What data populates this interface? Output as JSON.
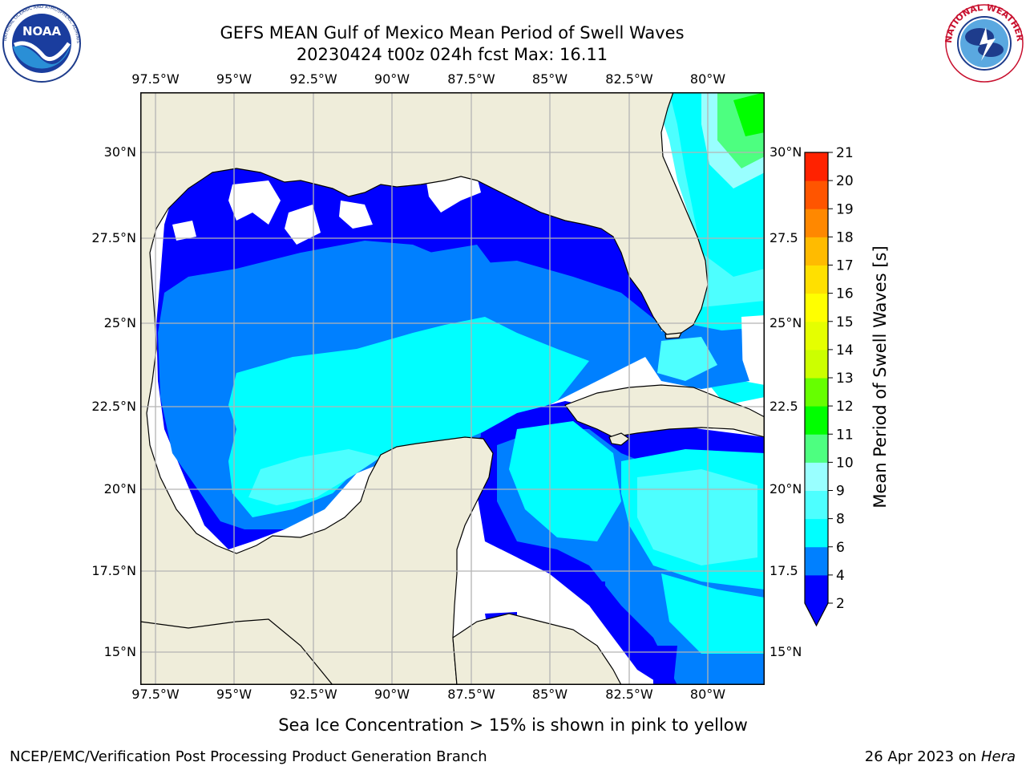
{
  "header": {
    "title_line1": "GEFS MEAN Gulf of Mexico Mean Period of Swell Waves",
    "title_line2": "20230424 t00z 024h fcst   Max: 16.11"
  },
  "logos": {
    "left": {
      "icon": "noaa-logo",
      "center_text": "NOAA",
      "ring_text": "NATIONAL OCEANIC AND ATMOSPHERIC ADMINISTRATION · U.S. DEPARTMENT OF COMMERCE"
    },
    "right": {
      "icon": "nws-logo",
      "ring_text": "NATIONAL WEATHER SERVICE"
    }
  },
  "map": {
    "lon_labels": [
      "97.5°W",
      "95°W",
      "92.5°W",
      "90°W",
      "87.5°W",
      "85°W",
      "82.5°W",
      "80°W"
    ],
    "lat_labels_left": [
      "30°N",
      "27.5°N",
      "25°N",
      "22.5°N",
      "20°N",
      "17.5°N",
      "15°N"
    ],
    "lat_labels_right": [
      "30°N",
      "27.5",
      "25°N",
      "22.5",
      "20°N",
      "17.5",
      "15°N"
    ],
    "colors": {
      "land": "#efedda",
      "grid": "#b4b4b4",
      "coast": "#000000"
    }
  },
  "colorbar": {
    "label": "Mean Period of Swell Waves [s]",
    "ticks": [
      "2",
      "4",
      "6",
      "8",
      "9",
      "10",
      "11",
      "12",
      "13",
      "14",
      "15",
      "16",
      "17",
      "18",
      "19",
      "20",
      "21"
    ],
    "colors": [
      "#0000ff",
      "#0080ff",
      "#00ffff",
      "#4dffff",
      "#99ffff",
      "#4dff80",
      "#00ff00",
      "#66ff00",
      "#ccff00",
      "#e5ff00",
      "#ffff00",
      "#ffe000",
      "#ffbb00",
      "#ff8800",
      "#ff5500",
      "#ff2200",
      "#ff0000"
    ]
  },
  "footer": {
    "note": "Sea Ice Concentration > 15% is shown in pink to yellow",
    "left": "NCEP/EMC/Verification Post Processing Product Generation Branch",
    "right_prefix": "26 Apr 2023 on ",
    "right_host": "Hera"
  }
}
